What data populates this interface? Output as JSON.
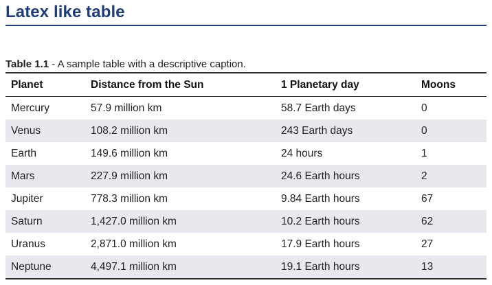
{
  "heading": "Latex like table",
  "caption": {
    "number": "Table 1.1",
    "text": " - A sample table with a descriptive caption."
  },
  "table": {
    "headers": [
      "Planet",
      "Distance from the Sun",
      "1 Planetary day",
      "Moons"
    ],
    "rows": [
      [
        "Mercury",
        "57.9 million km",
        "58.7 Earth days",
        "0"
      ],
      [
        "Venus",
        "108.2 million km",
        "243 Earth days",
        "0"
      ],
      [
        "Earth",
        "149.6 million km",
        "24 hours",
        "1"
      ],
      [
        "Mars",
        "227.9 million km",
        "24.6 Earth hours",
        "2"
      ],
      [
        "Jupiter",
        "778.3 million km",
        "9.84 Earth hours",
        "67"
      ],
      [
        "Saturn",
        "1,427.0 million km",
        "10.2 Earth hours",
        "62"
      ],
      [
        "Uranus",
        "2,871.0 million km",
        "17.9 Earth hours",
        "27"
      ],
      [
        "Neptune",
        "4,497.1 million km",
        "19.1 Earth hours",
        "13"
      ]
    ]
  },
  "colors": {
    "heading": "#1f3d7a",
    "stripe": "#e8e9ee",
    "rule": "#333333"
  }
}
